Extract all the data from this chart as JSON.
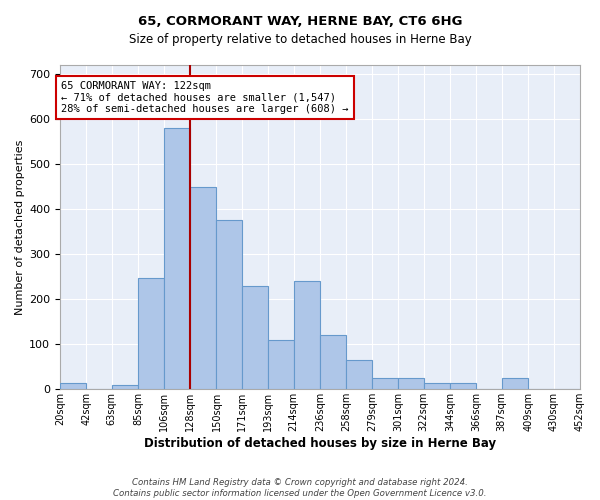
{
  "title": "65, CORMORANT WAY, HERNE BAY, CT6 6HG",
  "subtitle": "Size of property relative to detached houses in Herne Bay",
  "xlabel": "Distribution of detached houses by size in Herne Bay",
  "ylabel": "Number of detached properties",
  "footer_line1": "Contains HM Land Registry data © Crown copyright and database right 2024.",
  "footer_line2": "Contains public sector information licensed under the Open Government Licence v3.0.",
  "annotation_line1": "65 CORMORANT WAY: 122sqm",
  "annotation_line2": "← 71% of detached houses are smaller (1,547)",
  "annotation_line3": "28% of semi-detached houses are larger (608) →",
  "bin_labels": [
    "20sqm",
    "42sqm",
    "63sqm",
    "85sqm",
    "106sqm",
    "128sqm",
    "150sqm",
    "171sqm",
    "193sqm",
    "214sqm",
    "236sqm",
    "258sqm",
    "279sqm",
    "301sqm",
    "322sqm",
    "344sqm",
    "366sqm",
    "387sqm",
    "409sqm",
    "430sqm",
    "452sqm"
  ],
  "bin_edges": [
    20,
    42,
    63,
    85,
    106,
    128,
    150,
    171,
    193,
    214,
    236,
    258,
    279,
    301,
    322,
    344,
    366,
    387,
    409,
    430,
    452
  ],
  "bar_heights": [
    15,
    0,
    10,
    248,
    580,
    450,
    375,
    230,
    110,
    240,
    120,
    65,
    25,
    25,
    15,
    15,
    0,
    25,
    0,
    0
  ],
  "bar_color": "#aec6e8",
  "bar_edge_color": "#6699cc",
  "vline_color": "#aa0000",
  "vline_x_idx": 5,
  "annotation_box_color": "#cc0000",
  "background_color": "#e8eef8",
  "ylim": [
    0,
    720
  ],
  "yticks": [
    0,
    100,
    200,
    300,
    400,
    500,
    600,
    700
  ]
}
